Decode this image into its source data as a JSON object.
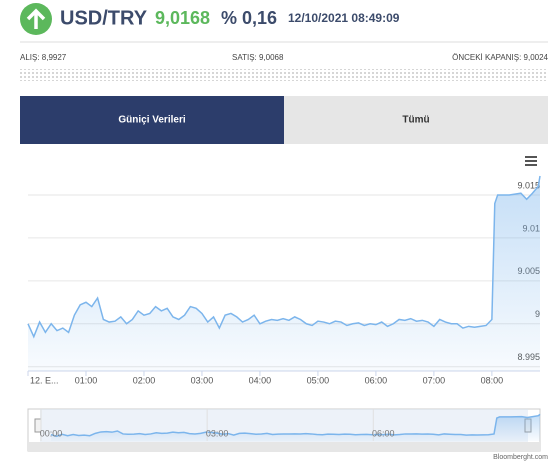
{
  "header": {
    "symbol": "USD/TRY",
    "price": "9,0168",
    "change": "% 0,16",
    "datetime": "12/10/2021 08:49:09"
  },
  "quotes": {
    "bid": "ALIŞ: 8,9927",
    "ask": "SATIŞ: 9,0068",
    "prev_close": "ÖNCEKİ KAPANIŞ: 9,0024"
  },
  "tabs": [
    "Güniçi Verileri",
    "Tümü"
  ],
  "credit": "Bloomberght.com",
  "chart_data": {
    "type": "line",
    "x": [
      0.0,
      0.1,
      0.2,
      0.3,
      0.4,
      0.5,
      0.6,
      0.7,
      0.8,
      0.9,
      1.0,
      1.1,
      1.2,
      1.3,
      1.4,
      1.5,
      1.6,
      1.7,
      1.8,
      1.9,
      2.0,
      2.1,
      2.2,
      2.3,
      2.4,
      2.5,
      2.6,
      2.7,
      2.8,
      2.9,
      3.0,
      3.1,
      3.2,
      3.3,
      3.4,
      3.5,
      3.6,
      3.7,
      3.8,
      3.9,
      4.0,
      4.1,
      4.2,
      4.3,
      4.4,
      4.5,
      4.6,
      4.7,
      4.8,
      4.9,
      5.0,
      5.1,
      5.2,
      5.3,
      5.4,
      5.5,
      5.6,
      5.7,
      5.8,
      5.9,
      6.0,
      6.1,
      6.2,
      6.3,
      6.4,
      6.5,
      6.6,
      6.7,
      6.8,
      6.9,
      7.0,
      7.1,
      7.2,
      7.3,
      7.4,
      7.5,
      7.6,
      7.7,
      7.8,
      7.9,
      8.0,
      8.05,
      8.1,
      8.3,
      8.5,
      8.6,
      8.7,
      8.8,
      8.83
    ],
    "series": [
      {
        "color": "#7cb5ec",
        "values": [
          9.0,
          8.9985,
          9.0002,
          8.999,
          9.0,
          8.9992,
          8.9995,
          8.999,
          9.001,
          9.0022,
          9.0025,
          9.002,
          9.003,
          9.0005,
          9.0002,
          9.0003,
          9.0008,
          9.0,
          9.0005,
          9.0015,
          9.001,
          9.0012,
          9.002,
          9.0015,
          9.0018,
          9.0008,
          9.0005,
          9.001,
          9.002,
          9.0018,
          9.0012,
          9.0002,
          9.0008,
          8.9995,
          9.001,
          9.0012,
          9.0008,
          9.0002,
          9.0005,
          9.001,
          9.0,
          9.0003,
          9.0005,
          9.0004,
          9.0006,
          9.0004,
          9.0008,
          9.0005,
          9.0,
          8.9998,
          9.0003,
          9.0002,
          9.0,
          9.0003,
          9.0002,
          8.9998,
          9.0,
          9.0001,
          8.9998,
          9.0,
          8.9999,
          9.0002,
          8.9997,
          9.0,
          9.0005,
          9.0004,
          9.0006,
          9.0003,
          9.0004,
          9.0002,
          8.9997,
          9.0005,
          9.0002,
          9.0,
          9.0,
          8.9995,
          8.9997,
          8.9996,
          8.9997,
          8.9998,
          9.0005,
          9.014,
          9.015,
          9.015,
          9.0152,
          9.0145,
          9.0152,
          9.016,
          9.0172
        ]
      }
    ],
    "xlim": [
      0,
      8.83
    ],
    "xticks": [
      {
        "value": 0,
        "label": "12. E..."
      },
      {
        "value": 1,
        "label": "01:00"
      },
      {
        "value": 2,
        "label": "02:00"
      },
      {
        "value": 3,
        "label": "03:00"
      },
      {
        "value": 4,
        "label": "04:00"
      },
      {
        "value": 5,
        "label": "05:00"
      },
      {
        "value": 6,
        "label": "06:00"
      },
      {
        "value": 7,
        "label": "07:00"
      },
      {
        "value": 8,
        "label": "08:00"
      }
    ],
    "ylim": [
      8.9945,
      9.02
    ],
    "yticks": [
      8.995,
      9,
      9.005,
      9.01,
      9.015
    ],
    "grid": true,
    "navigator_xticks": [
      {
        "value": 0,
        "label": "00:00"
      },
      {
        "value": 3,
        "label": "03:00"
      },
      {
        "value": 6,
        "label": "06:00"
      }
    ]
  }
}
